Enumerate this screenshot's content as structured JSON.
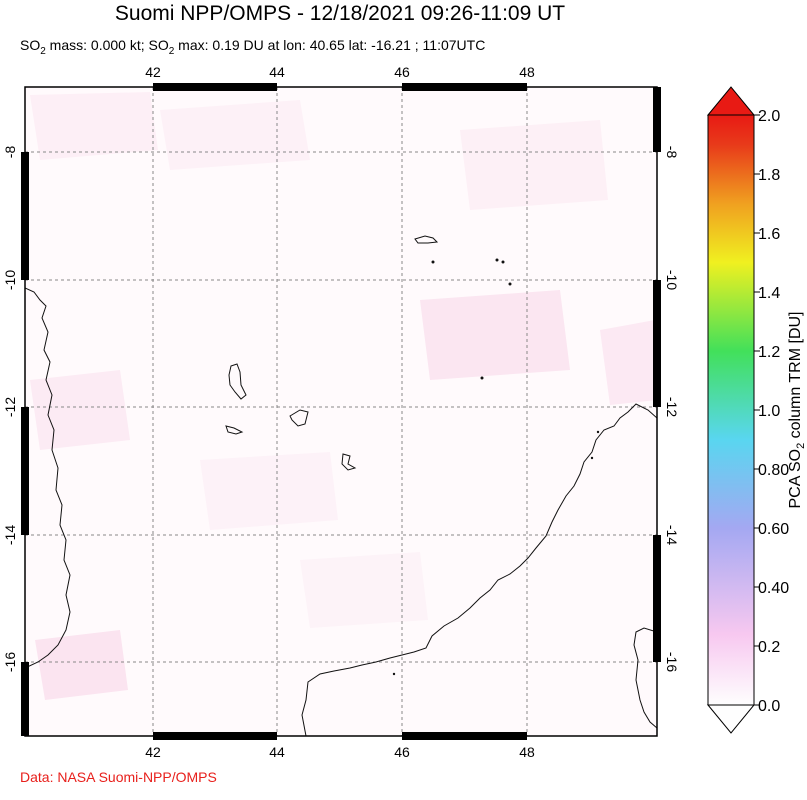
{
  "header": {
    "title": "Suomi NPP/OMPS - 12/18/2021 09:26-11:09 UT",
    "subtitle_parts": [
      "SO",
      "2",
      " mass: 0.000 kt; SO",
      "2",
      " max: 0.19 DU at lon: 40.65 lat: -16.21 ; 11:07UTC"
    ]
  },
  "map": {
    "lon_ticks": [
      "42",
      "44",
      "46",
      "48"
    ],
    "lat_ticks": [
      "-8",
      "-10",
      "-12",
      "-14",
      "-16"
    ],
    "lon_range": [
      40.0,
      50.0
    ],
    "lat_range": [
      -17.2,
      -7.1
    ],
    "grid": "dashed"
  },
  "colorbar": {
    "label_parts": [
      "PCA SO",
      "2",
      " column TRM [DU]"
    ],
    "ticks": [
      "2.0",
      "1.8",
      "1.6",
      "1.4",
      "1.2",
      "1.0",
      "0.80",
      "0.60",
      "0.40",
      "0.2",
      "0.0"
    ],
    "range": [
      0.0,
      2.0
    ],
    "colors": [
      "#fefefe",
      "#f7c8f0",
      "#a4a8f2",
      "#59d6f0",
      "#42e05a",
      "#f0f020",
      "#f0a020",
      "#e83a1a",
      "#e81a14"
    ]
  },
  "footer": {
    "credit": "Data: NASA Suomi-NPP/OMPS"
  }
}
